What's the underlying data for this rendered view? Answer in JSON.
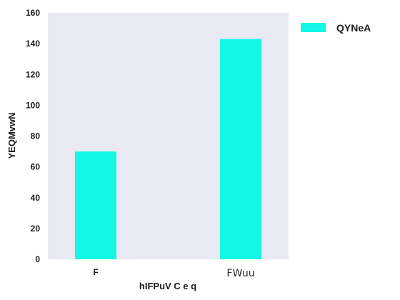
{
  "chart_data": {
    "type": "bar",
    "categories": [
      "F",
      "FWuu"
    ],
    "series": [
      {
        "name": "QYNeA",
        "values": [
          70,
          143
        ]
      }
    ],
    "xlabel": "hIFPuV C e q",
    "ylabel": "YEQMvwN",
    "ylim": [
      0,
      160
    ],
    "yticks": [
      0,
      20,
      40,
      60,
      80,
      100,
      120,
      140,
      160
    ],
    "grid": false,
    "legend_position": "outside-top-right",
    "colors": {
      "bar": "#14f7e6",
      "plot_background": "#e8e9f2"
    }
  }
}
